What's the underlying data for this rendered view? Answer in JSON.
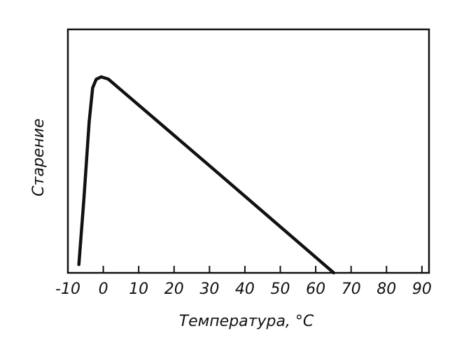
{
  "chart_data": {
    "type": "line",
    "x_label": "Температура, °C",
    "y_label": "Старение",
    "x": [
      -6.9,
      -5.5,
      -4,
      -3,
      -2,
      -0.6,
      1.4,
      30,
      65.1
    ],
    "values": [
      3.4,
      30,
      62,
      76,
      79.5,
      80.5,
      79.6,
      44,
      0
    ],
    "color": "#111111",
    "xlim": [
      -10,
      92
    ],
    "ylim": [
      0,
      100
    ],
    "xticks": [
      -10,
      0,
      10,
      20,
      30,
      40,
      50,
      60,
      70,
      80,
      90
    ]
  }
}
